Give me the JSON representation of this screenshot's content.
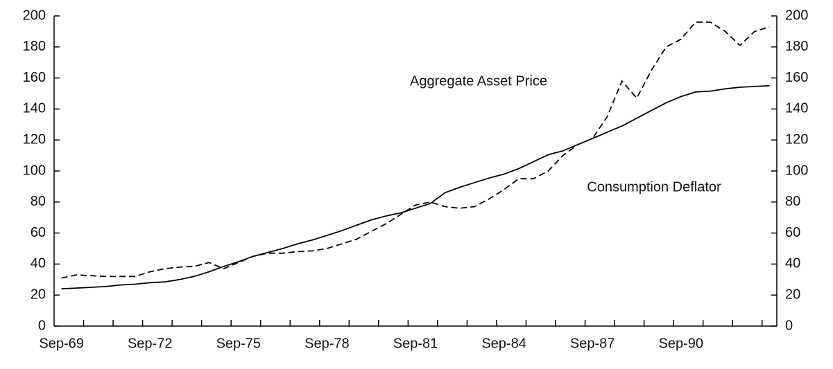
{
  "chart_data": {
    "type": "line",
    "categories": [
      "Sep-69",
      null,
      null,
      null,
      null,
      null,
      "Sep-72",
      null,
      null,
      null,
      null,
      null,
      "Sep-75",
      null,
      null,
      null,
      null,
      null,
      "Sep-78",
      null,
      null,
      null,
      null,
      null,
      "Sep-81",
      null,
      null,
      null,
      null,
      null,
      "Sep-84",
      null,
      null,
      null,
      null,
      null,
      "Sep-87",
      null,
      null,
      null,
      null,
      null,
      "Sep-90",
      null,
      null,
      null,
      null,
      null,
      null
    ],
    "series": [
      {
        "name": "Aggregate Asset Price",
        "color": "#000000",
        "line_style": "dashed",
        "values": [
          31,
          33,
          32.5,
          32,
          32,
          32,
          35,
          37,
          38,
          38.5,
          41,
          37,
          41,
          45,
          47,
          47,
          48,
          48.5,
          50,
          53,
          56,
          61,
          66,
          72,
          78,
          80,
          77,
          76,
          77,
          82,
          88,
          95,
          95,
          100,
          110,
          117,
          121,
          135,
          158,
          147,
          165,
          180,
          185,
          196,
          196,
          190,
          181,
          190,
          193
        ]
      },
      {
        "name": "Consumption Deflator",
        "color": "#000000",
        "line_style": "solid",
        "values": [
          24,
          24.5,
          25,
          25.5,
          26.5,
          27,
          28,
          28.5,
          30,
          32,
          35,
          38.5,
          41.5,
          45,
          47.5,
          50,
          53,
          55.5,
          58.5,
          61.5,
          65,
          68.5,
          71,
          73,
          76,
          79,
          86,
          89.5,
          92.5,
          95.5,
          98,
          101.5,
          106,
          110.5,
          113,
          117,
          121,
          125,
          129,
          134,
          139,
          144,
          148,
          151,
          151.5,
          153,
          154,
          154.5,
          155
        ]
      }
    ],
    "ylim": [
      0,
      200
    ],
    "yticks": [
      0,
      20,
      40,
      60,
      80,
      100,
      120,
      140,
      160,
      180,
      200
    ],
    "y2lim": [
      0,
      200
    ],
    "y2ticks": [
      0,
      20,
      40,
      60,
      80,
      100,
      120,
      140,
      160,
      180,
      200
    ],
    "grid": false
  }
}
